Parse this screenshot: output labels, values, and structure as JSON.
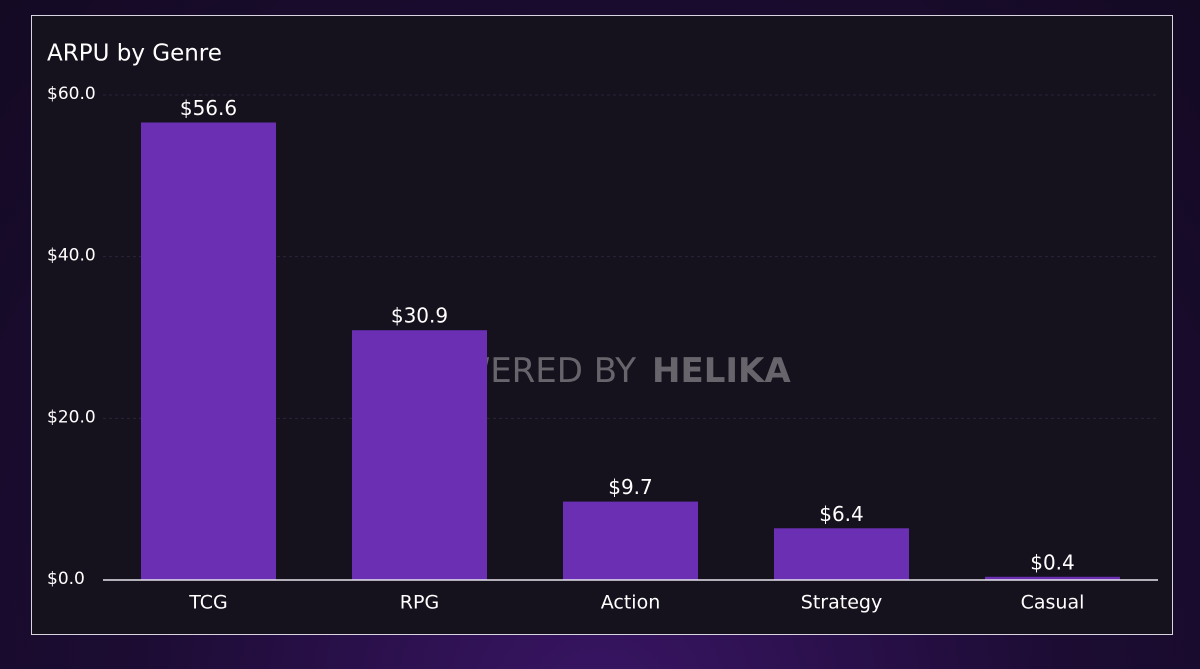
{
  "chart_data": {
    "type": "bar",
    "title": "ARPU by Genre",
    "categories": [
      "TCG",
      "RPG",
      "Action",
      "Strategy",
      "Casual"
    ],
    "values": [
      56.6,
      30.9,
      9.7,
      6.4,
      0.4
    ],
    "value_labels": [
      "$56.6",
      "$30.9",
      "$9.7",
      "$6.4",
      "$0.4"
    ],
    "color": "#6a2fb3",
    "ylim": [
      0,
      60
    ],
    "yticks": [
      {
        "value": 0,
        "label": "$0.0"
      },
      {
        "value": 20,
        "label": "$20.0"
      },
      {
        "value": 40,
        "label": "$40.0"
      },
      {
        "value": 60,
        "label": "$60.0"
      }
    ],
    "grid": true,
    "watermark": [
      "POWERED BY",
      "HELIKA"
    ]
  }
}
